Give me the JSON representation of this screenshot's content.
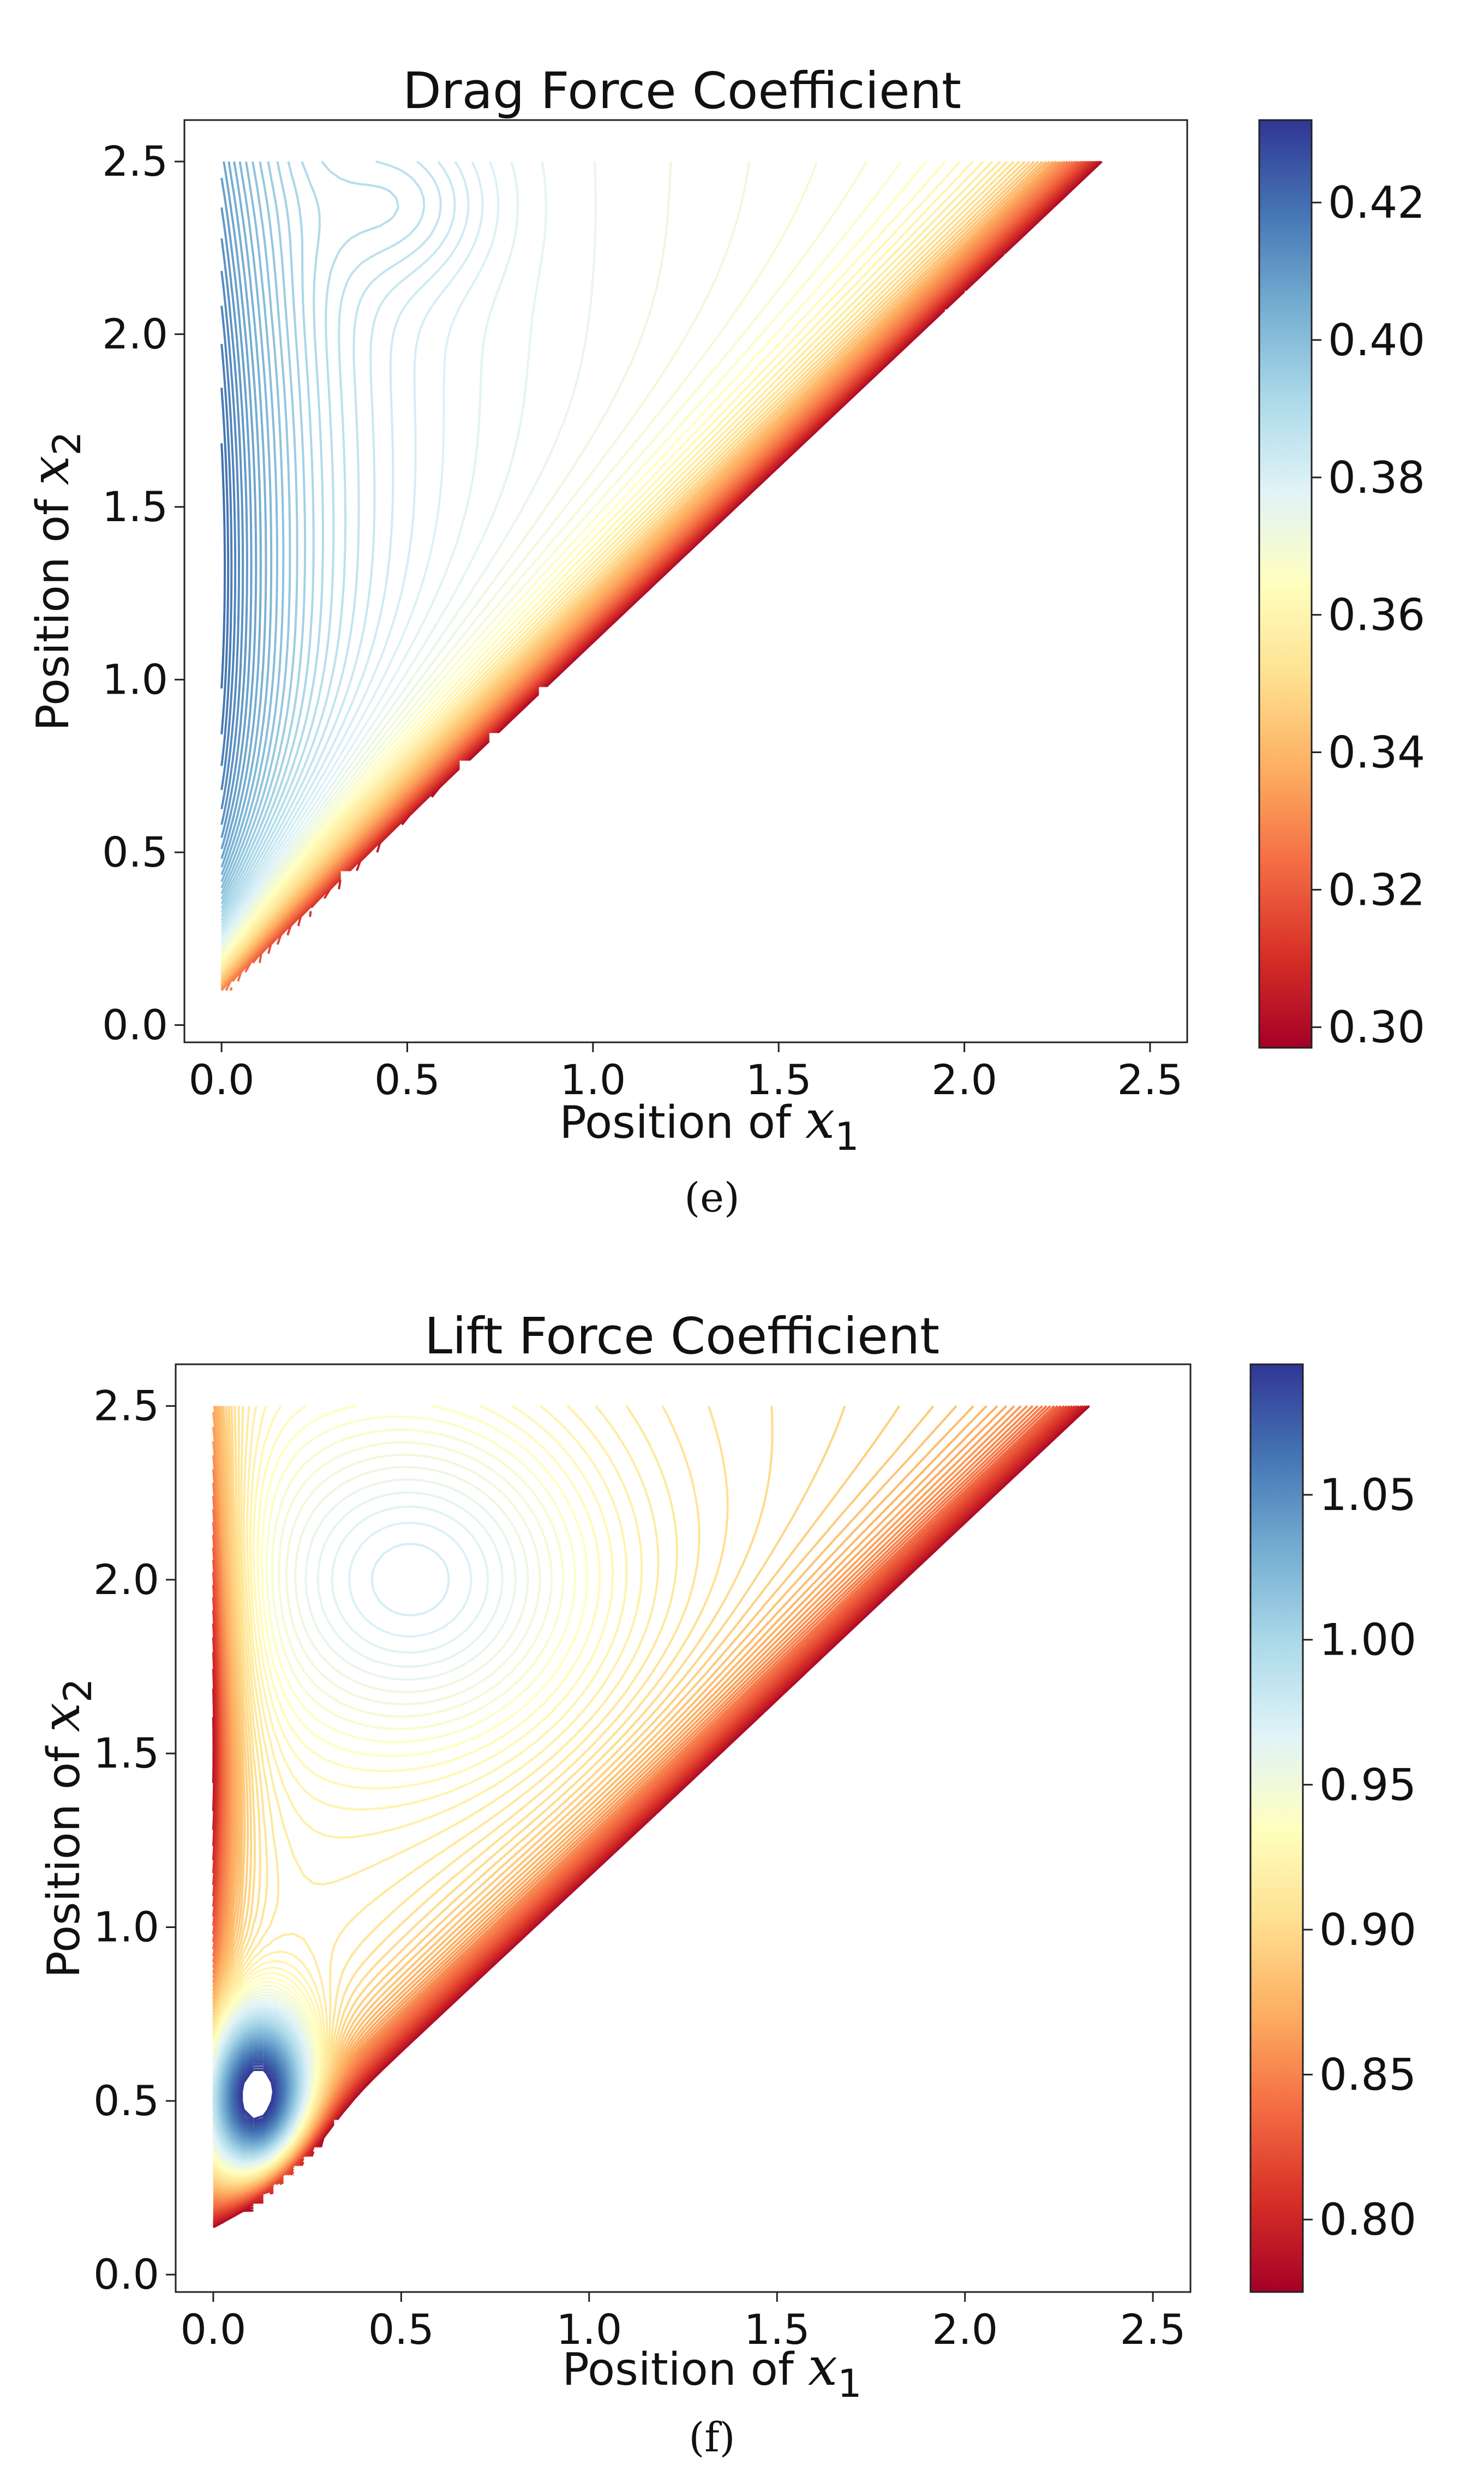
{
  "chart_data": [
    {
      "type": "contour",
      "title": "Drag Force Coefficient",
      "xlabel_prefix": "Position of",
      "xlabel_var": "x",
      "xlabel_sub": "1",
      "ylabel_prefix": "Position of",
      "ylabel_var": "x",
      "ylabel_sub": "2",
      "xlim": [
        -0.1,
        2.6
      ],
      "ylim": [
        -0.05,
        2.62
      ],
      "xticks": [
        "0.0",
        "0.5",
        "1.0",
        "1.5",
        "2.0",
        "2.5"
      ],
      "yticks": [
        "0.0",
        "0.5",
        "1.0",
        "1.5",
        "2.0",
        "2.5"
      ],
      "domain": {
        "description": "triangle",
        "vertices": [
          [
            0,
            0.1
          ],
          [
            0,
            2.5
          ],
          [
            2.4,
            2.5
          ]
        ]
      },
      "colorbar": {
        "min": 0.297,
        "max": 0.432,
        "ticks": [
          0.3,
          0.32,
          0.34,
          0.36,
          0.38,
          0.4,
          0.42
        ],
        "tick_labels": [
          "0.30",
          "0.32",
          "0.34",
          "0.36",
          "0.38",
          "0.40",
          "0.42"
        ],
        "colormap": "RdYlBu"
      },
      "caption": "(e)"
    },
    {
      "type": "contour",
      "title": "Lift Force Coefficient",
      "xlabel_prefix": "Position of",
      "xlabel_var": "x",
      "xlabel_sub": "1",
      "ylabel_prefix": "Position of",
      "ylabel_var": "x",
      "ylabel_sub": "2",
      "xlim": [
        -0.1,
        2.6
      ],
      "ylim": [
        -0.05,
        2.62
      ],
      "xticks": [
        "0.0",
        "0.5",
        "1.0",
        "1.5",
        "2.0",
        "2.5"
      ],
      "yticks": [
        "0.0",
        "0.5",
        "1.0",
        "1.5",
        "2.0",
        "2.5"
      ],
      "domain": {
        "description": "triangle",
        "vertices": [
          [
            0,
            0.1
          ],
          [
            0,
            2.5
          ],
          [
            2.4,
            2.5
          ]
        ]
      },
      "colorbar": {
        "min": 0.775,
        "max": 1.095,
        "ticks": [
          0.8,
          0.85,
          0.9,
          0.95,
          1.0,
          1.05
        ],
        "tick_labels": [
          "0.80",
          "0.85",
          "0.90",
          "0.95",
          "1.00",
          "1.05"
        ],
        "colormap": "RdYlBu"
      },
      "caption": "(f)"
    }
  ]
}
